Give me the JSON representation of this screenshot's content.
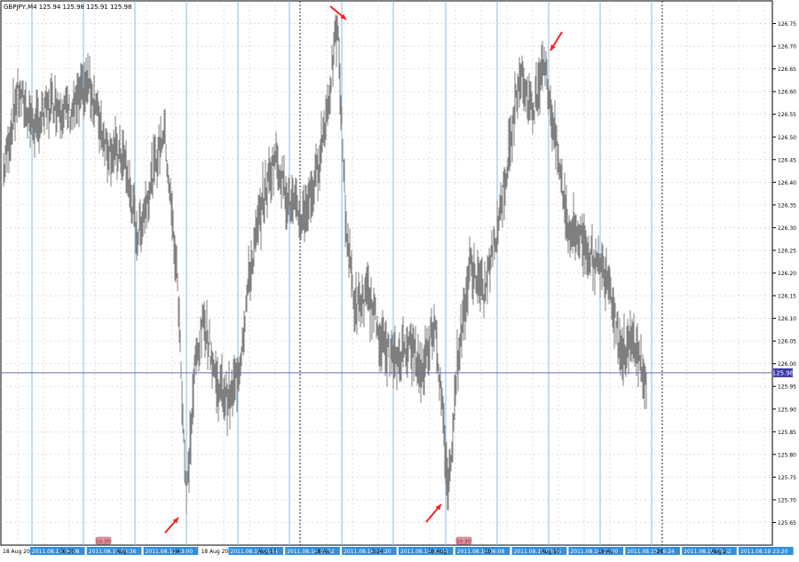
{
  "chart_header": "GBPJPY,M4  125.94 125.98 125.91 125.98",
  "current_price_label": "125.98",
  "colors": {
    "background": "#ffffff",
    "grid": "#c8c8c8",
    "bars": "#7f7f7f",
    "session_lines": "#7fbfe8",
    "price_line": "#6b6bb0",
    "price_tag": "#3a3aa6",
    "arrows": "#ff2020",
    "time_tags": "#2f8fe0",
    "event_tag": "#e39aa4"
  },
  "chart_data": {
    "type": "line",
    "title": "GBPJPY,M4",
    "ylim": [
      125.6,
      126.8
    ],
    "yticks": [
      125.65,
      125.7,
      125.75,
      125.8,
      125.85,
      125.9,
      125.95,
      126.0,
      126.05,
      126.1,
      126.15,
      126.2,
      126.25,
      126.3,
      126.35,
      126.4,
      126.45,
      126.5,
      126.55,
      126.6,
      126.65,
      126.7,
      126.75
    ],
    "ytick_labels": [
      "125.65",
      "125.70",
      "125.75",
      "125.80",
      "125.85",
      "125.90",
      "125.95",
      "126.00",
      "126.05",
      "126.10",
      "126.15",
      "126.20",
      "126.25",
      "126.30",
      "126.35",
      "126.40",
      "126.45",
      "126.50",
      "126.55",
      "126.60",
      "126.65",
      "126.70",
      "126.75"
    ],
    "series": [
      {
        "x": [
          0,
          20,
          40,
          60,
          80,
          100,
          120,
          140,
          155,
          170,
          185,
          200,
          210,
          220,
          230,
          245,
          260,
          270,
          280,
          295,
          310,
          325,
          340,
          355,
          370,
          380,
          390,
          400,
          415,
          430,
          445,
          460,
          475,
          490,
          505,
          515,
          530,
          545,
          560,
          575,
          585,
          600,
          612,
          625,
          640,
          655,
          670,
          685,
          700,
          715,
          728
        ],
        "values": [
          126.38,
          126.6,
          126.52,
          126.58,
          126.55,
          126.62,
          126.48,
          126.45,
          126.28,
          126.4,
          126.52,
          126.18,
          125.7,
          126.0,
          126.1,
          125.95,
          125.92,
          126.0,
          126.18,
          126.35,
          126.46,
          126.36,
          126.32,
          126.4,
          126.58,
          126.75,
          126.3,
          126.12,
          126.15,
          126.05,
          126.0,
          126.05,
          125.98,
          126.1,
          125.72,
          126.0,
          126.22,
          126.15,
          126.3,
          126.48,
          126.65,
          126.55,
          126.68,
          126.5,
          126.3,
          126.28,
          126.22,
          126.2,
          126.02,
          126.05,
          125.95
        ]
      }
    ],
    "time_labels": [
      "18 Aug 2011",
      "2011.08.18 06:08",
      "06:20",
      "2011.08.18 09:36",
      "Aug",
      "2011.08.18 13:00",
      "H4",
      "18 Aug 2011",
      "2011.08.18 16:24",
      "Aug 17",
      "2011.08.18 19:52",
      "18 Au",
      "2011.08.18 23:20",
      "3:24",
      "2011.08.19 02:44",
      "18 Aug",
      "2011.08.19 06:08",
      "19",
      "2011.08.19 09:36",
      "Aug 10",
      "2011.08.19 13:00",
      "19 Au",
      "2011.08.19 16:24",
      "-28",
      "2011.08.19 19:52",
      "Aug 2",
      "2011.08.19 23:20"
    ],
    "time_label_highlight": [
      false,
      true,
      false,
      true,
      false,
      true,
      false,
      false,
      true,
      false,
      true,
      false,
      true,
      false,
      true,
      false,
      true,
      false,
      true,
      false,
      true,
      false,
      true,
      false,
      true,
      false,
      true
    ],
    "event_tags": [
      "10:30",
      "10:30"
    ],
    "annotations": [
      "arrow",
      "arrow",
      "arrow",
      "arrow"
    ],
    "grid": true,
    "current_price": 125.98
  }
}
